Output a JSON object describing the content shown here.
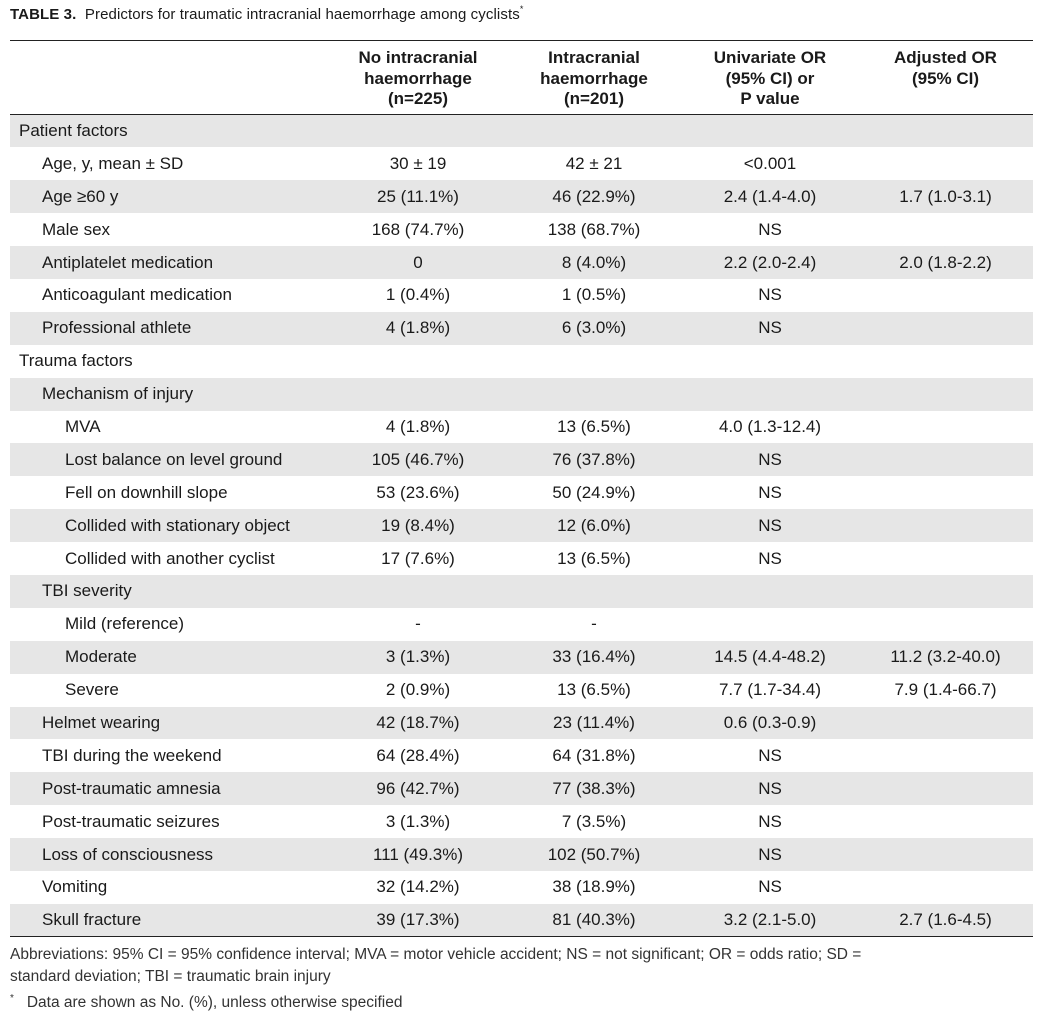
{
  "caption": {
    "label": "TABLE 3.",
    "title": "Predictors for traumatic intracranial haemorrhage among cyclists",
    "marker": "*"
  },
  "headers": [
    {
      "lines": [
        ""
      ]
    },
    {
      "lines": [
        "No intracranial",
        "haemorrhage",
        "(n=225)"
      ]
    },
    {
      "lines": [
        "Intracranial",
        "haemorrhage",
        "(n=201)"
      ]
    },
    {
      "lines": [
        "Univariate OR",
        "(95% CI) or",
        "P value"
      ]
    },
    {
      "lines": [
        "Adjusted OR",
        "(95% CI)"
      ]
    }
  ],
  "rows": [
    {
      "level": 0,
      "shade": true,
      "cells": [
        "Patient factors",
        "",
        "",
        "",
        ""
      ]
    },
    {
      "level": 1,
      "shade": false,
      "cells": [
        "Age, y, mean ± SD",
        "30 ± 19",
        "42 ± 21",
        "<0.001",
        ""
      ]
    },
    {
      "level": 1,
      "shade": true,
      "cells": [
        "Age ≥60 y",
        "25 (11.1%)",
        "46 (22.9%)",
        "2.4 (1.4-4.0)",
        "1.7 (1.0-3.1)"
      ]
    },
    {
      "level": 1,
      "shade": false,
      "cells": [
        "Male sex",
        "168 (74.7%)",
        "138 (68.7%)",
        "NS",
        ""
      ]
    },
    {
      "level": 1,
      "shade": true,
      "cells": [
        "Antiplatelet medication",
        "0",
        "8 (4.0%)",
        "2.2 (2.0-2.4)",
        "2.0 (1.8-2.2)"
      ]
    },
    {
      "level": 1,
      "shade": false,
      "cells": [
        "Anticoagulant medication",
        "1 (0.4%)",
        "1 (0.5%)",
        "NS",
        ""
      ]
    },
    {
      "level": 1,
      "shade": true,
      "cells": [
        "Professional athlete",
        "4 (1.8%)",
        "6 (3.0%)",
        "NS",
        ""
      ]
    },
    {
      "level": 0,
      "shade": false,
      "cells": [
        "Trauma factors",
        "",
        "",
        "",
        ""
      ]
    },
    {
      "level": 1,
      "shade": true,
      "cells": [
        "Mechanism of injury",
        "",
        "",
        "",
        ""
      ]
    },
    {
      "level": 2,
      "shade": false,
      "cells": [
        "MVA",
        "4 (1.8%)",
        "13 (6.5%)",
        "4.0 (1.3-12.4)",
        ""
      ]
    },
    {
      "level": 2,
      "shade": true,
      "cells": [
        "Lost balance on level ground",
        "105 (46.7%)",
        "76 (37.8%)",
        "NS",
        ""
      ]
    },
    {
      "level": 2,
      "shade": false,
      "cells": [
        "Fell on downhill slope",
        "53 (23.6%)",
        "50 (24.9%)",
        "NS",
        ""
      ]
    },
    {
      "level": 2,
      "shade": true,
      "cells": [
        "Collided with stationary object",
        "19 (8.4%)",
        "12 (6.0%)",
        "NS",
        ""
      ]
    },
    {
      "level": 2,
      "shade": false,
      "cells": [
        "Collided with another cyclist",
        "17 (7.6%)",
        "13 (6.5%)",
        "NS",
        ""
      ]
    },
    {
      "level": 1,
      "shade": true,
      "cells": [
        "TBI severity",
        "",
        "",
        "",
        ""
      ]
    },
    {
      "level": 2,
      "shade": false,
      "cells": [
        "Mild (reference)",
        "-",
        "-",
        "",
        ""
      ]
    },
    {
      "level": 2,
      "shade": true,
      "cells": [
        "Moderate",
        "3 (1.3%)",
        "33 (16.4%)",
        "14.5 (4.4-48.2)",
        "11.2 (3.2-40.0)"
      ]
    },
    {
      "level": 2,
      "shade": false,
      "cells": [
        "Severe",
        "2 (0.9%)",
        "13 (6.5%)",
        "7.7 (1.7-34.4)",
        "7.9 (1.4-66.7)"
      ]
    },
    {
      "level": 1,
      "shade": true,
      "cells": [
        "Helmet wearing",
        "42 (18.7%)",
        "23 (11.4%)",
        "0.6 (0.3-0.9)",
        ""
      ]
    },
    {
      "level": 1,
      "shade": false,
      "cells": [
        "TBI during the weekend",
        "64 (28.4%)",
        "64 (31.8%)",
        "NS",
        ""
      ]
    },
    {
      "level": 1,
      "shade": true,
      "cells": [
        "Post-traumatic amnesia",
        "96 (42.7%)",
        "77 (38.3%)",
        "NS",
        ""
      ]
    },
    {
      "level": 1,
      "shade": false,
      "cells": [
        "Post-traumatic seizures",
        "3 (1.3%)",
        "7 (3.5%)",
        "NS",
        ""
      ]
    },
    {
      "level": 1,
      "shade": true,
      "cells": [
        "Loss of consciousness",
        "111 (49.3%)",
        "102 (50.7%)",
        "NS",
        ""
      ]
    },
    {
      "level": 1,
      "shade": false,
      "cells": [
        "Vomiting",
        "32 (14.2%)",
        "38 (18.9%)",
        "NS",
        ""
      ]
    },
    {
      "level": 1,
      "shade": true,
      "cells": [
        "Skull fracture",
        "39 (17.3%)",
        "81 (40.3%)",
        "3.2 (2.1-5.0)",
        "2.7 (1.6-4.5)"
      ]
    }
  ],
  "footer": {
    "abbreviations_1": "Abbreviations: 95% CI = 95% confidence interval; MVA = motor vehicle accident; NS = not significant; OR = odds ratio; SD =",
    "abbreviations_2": "standard deviation; TBI = traumatic brain injury",
    "note_marker": "*",
    "note": "Data are shown as No. (%), unless otherwise specified"
  },
  "colors": {
    "shade": "#e6e6e6",
    "rule": "#222222",
    "text": "#1a1a1a"
  }
}
